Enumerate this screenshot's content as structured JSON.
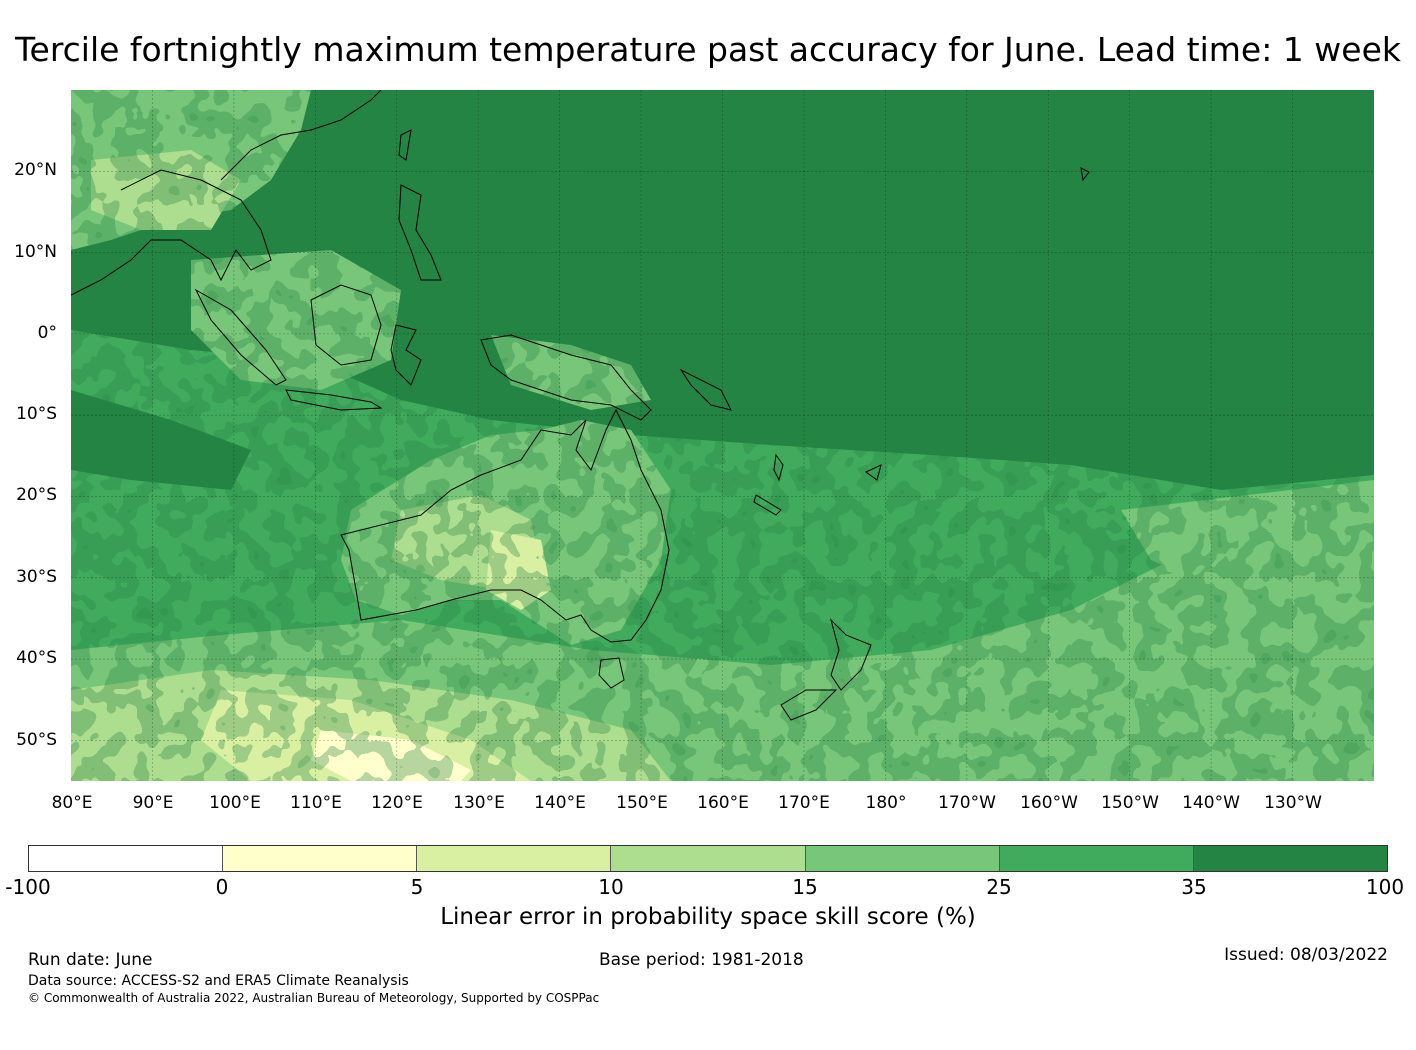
{
  "title": "Tercile fortnightly maximum temperature past accuracy for June. Lead time: 1 week",
  "map": {
    "lat_labels": [
      "20°N",
      "10°N",
      "0°",
      "10°S",
      "20°S",
      "30°S",
      "40°S",
      "50°S"
    ],
    "lon_labels": [
      "80°E",
      "90°E",
      "100°E",
      "110°E",
      "120°E",
      "130°E",
      "140°E",
      "150°E",
      "160°E",
      "170°E",
      "180°",
      "170°W",
      "160°W",
      "150°W",
      "140°W",
      "130°W"
    ],
    "extent": {
      "lon_min": 80,
      "lon_max": 240,
      "lat_min": -55,
      "lat_max": 30
    }
  },
  "colorbar": {
    "ticks": [
      "-100",
      "0",
      "5",
      "10",
      "15",
      "25",
      "35",
      "100"
    ],
    "colors": [
      "#ffffff",
      "#ffffcc",
      "#d9f0a3",
      "#addd8e",
      "#78c679",
      "#41ab5d",
      "#238443"
    ],
    "label": "Linear error in probability space skill score (%)"
  },
  "footer": {
    "run_date": "Run date: June",
    "base_period": "Base period: 1981-2018",
    "issued": "Issued: 08/03/2022",
    "data_source": "Data source: ACCESS-S2 and ERA5 Climate Reanalysis",
    "copyright": "© Commonwealth of Australia 2022, Australian Bureau of Meteorology, Supported by COSPPac"
  }
}
